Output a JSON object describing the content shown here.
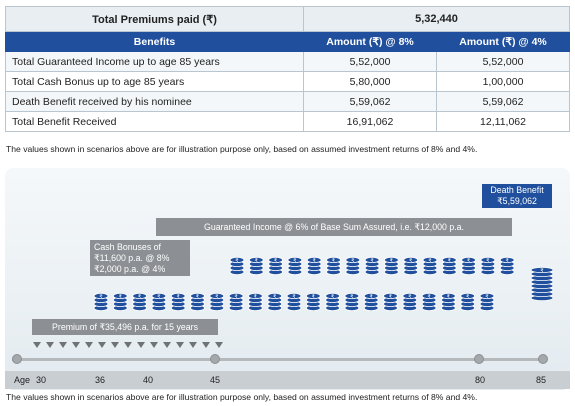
{
  "table": {
    "premium_label": "Total Premiums paid (₹)",
    "premium_value": "5,32,440",
    "headers": [
      "Benefits",
      "Amount (₹) @ 8%",
      "Amount (₹) @ 4%"
    ],
    "rows": [
      [
        "Total Guaranteed Income up to age 85 years",
        "5,52,000",
        "5,52,000"
      ],
      [
        "Total Cash Bonus up to age 85 years",
        "5,80,000",
        "1,00,000"
      ],
      [
        "Death Benefit received by his nominee",
        "5,59,062",
        "5,59,062"
      ],
      [
        "Total Benefit Received",
        "16,91,062",
        "12,11,062"
      ]
    ]
  },
  "note_top": "The values shown in scenarios above are for illustration purpose only, based on assumed investment returns of 8% and 4%.",
  "note_bottom": "The values shown in scenarios above are for illustration purpose only, based on assumed investment returns of 8% and 4%.",
  "illustration": {
    "death_benefit": [
      "Death Benefit",
      "₹5,59,062"
    ],
    "guaranteed_income": "Guaranteed Income @ 6% of Base Sum Assured, i.e. ₹12,000 p.a.",
    "cash_bonus": [
      "Cash Bonuses of",
      "₹11,600 p.a. @ 8%",
      "₹2,000 p.a. @ 4%"
    ],
    "premium": "Premium of ₹35,496 p.a. for 15 years",
    "age_label": "Age",
    "ages": [
      "30",
      "36",
      "40",
      "45",
      "80",
      "85"
    ],
    "colors": {
      "coin": "#1f4f9d",
      "label": "#8c8f93",
      "header": "#1f4f9d"
    }
  }
}
